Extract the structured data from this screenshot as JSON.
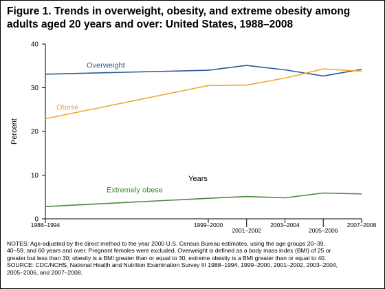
{
  "title_lines": [
    "Figure 1. Trends in overweight, obesity, and extreme obesity among",
    "adults aged 20 years and over: United States, 1988–2008"
  ],
  "notes_lines": [
    "NOTES: Age-adjusted by the direct method to the year 2000 U.S. Census Bureau estimates, using the age groups 20–39,",
    "40–59, and 60 years and over. Pregnant females were excluded. Overweight is defined as a body mass index (BMI) of 25 or",
    "greater but less than 30; obesity is a BMI greater than or equal to 30; extreme obesity is a BMI greater than or equal to 40.",
    "SOURCE: CDC/NCHS, National Health and Nutrition Examination Survey III 1988–1994, 1999–2000, 2001–2002, 2003–2004,",
    "2005–2006, and 2007–2008."
  ],
  "chart_data": {
    "type": "line",
    "ylabel": "Percent",
    "xlabel": "Years",
    "ylim": [
      0,
      40
    ],
    "yticks": [
      0,
      10,
      20,
      30,
      40
    ],
    "x": [
      "1988–1994",
      "1999–2000",
      "2001–2002",
      "2003–2004",
      "2005–2006",
      "2007–2008"
    ],
    "x_years": [
      1991,
      1999.5,
      2001.5,
      2003.5,
      2005.5,
      2007.5
    ],
    "xlim": [
      1991,
      2007.5
    ],
    "x_label_row": [
      "bottom",
      "bottom",
      "lower",
      "bottom",
      "lower",
      "bottom"
    ],
    "series": [
      {
        "name": "Overweight",
        "color": "#2a5a96",
        "values": [
          33.1,
          34.0,
          35.1,
          34.1,
          32.7,
          34.2
        ]
      },
      {
        "name": "Obese",
        "color": "#f0a830",
        "values": [
          22.9,
          30.5,
          30.6,
          32.2,
          34.3,
          33.8
        ]
      },
      {
        "name": "Extremely obese",
        "color": "#4a8a3a",
        "values": [
          2.8,
          4.7,
          5.1,
          4.8,
          5.9,
          5.7
        ]
      }
    ]
  }
}
